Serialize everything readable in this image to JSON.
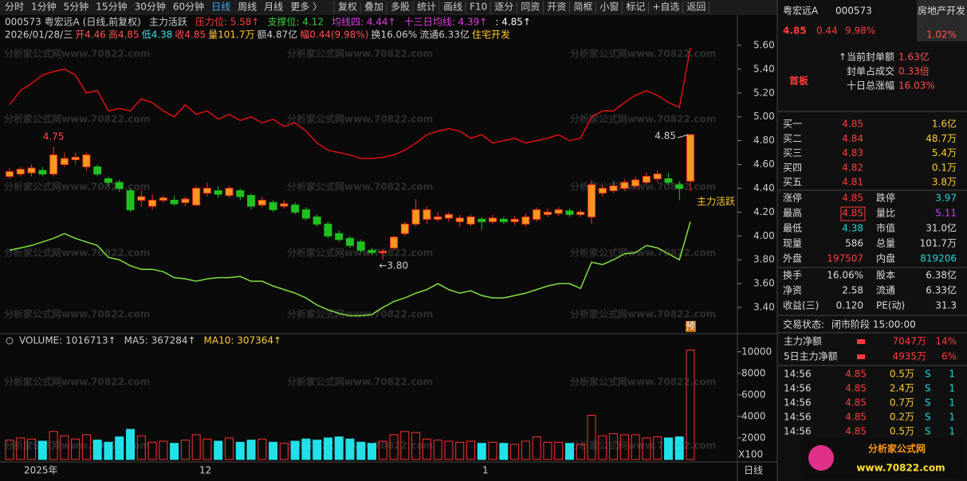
{
  "toolbar": [
    "分时",
    "1分钟",
    "5分钟",
    "15分钟",
    "30分钟",
    "60分钟",
    "日线",
    "周线",
    "月线",
    "更多 〉",
    "复权",
    "叠加",
    "多股",
    "统计",
    "画线",
    "F10",
    "逐分",
    "同资",
    "开资",
    "简框",
    "小窗",
    "标记",
    "+自选",
    "返回"
  ],
  "info_line1": [
    "000573 粤宏远A (日线,前复权)",
    "主力活跃",
    "压力位: 5.58↑",
    "支撑位: 4.12",
    "均线四: 4.44↑",
    "十三日均线: 4.39↑",
    ": 4.85↑"
  ],
  "info_line2": [
    "2026/01/28/三",
    "开4.46",
    "高4.85",
    "低4.38",
    "收4.85",
    "量101.7万",
    "额4.87亿",
    "幅0.44(9.98%)",
    "换16.06%",
    "流通6.33亿",
    "住宅开发"
  ],
  "watermark": "分析家公式网www.70822.com",
  "price_chart": {
    "ylim": [
      3.2,
      5.8
    ],
    "yticks": [
      {
        "value": 5.6,
        "label": "5.60"
      },
      {
        "value": 5.4,
        "label": "5.40"
      },
      {
        "value": 5.2,
        "label": "5.20"
      },
      {
        "value": 5.0,
        "label": "5.00"
      },
      {
        "value": 4.8,
        "label": "4.80"
      },
      {
        "value": 4.6,
        "label": "4.60"
      },
      {
        "value": 4.4,
        "label": "4.40"
      },
      {
        "value": 4.2,
        "label": "4.20"
      },
      {
        "value": 4.0,
        "label": "4.00"
      },
      {
        "value": 3.8,
        "label": "3.80"
      },
      {
        "value": 3.6,
        "label": "3.60"
      },
      {
        "value": 3.4,
        "label": "3.40"
      }
    ],
    "candles": [
      [
        4.5,
        4.54,
        4.57,
        4.48
      ],
      [
        4.52,
        4.56,
        4.58,
        4.5
      ],
      [
        4.53,
        4.57,
        4.6,
        4.5
      ],
      [
        4.55,
        4.52,
        4.58,
        4.5
      ],
      [
        4.52,
        4.68,
        4.75,
        4.5
      ],
      [
        4.6,
        4.65,
        4.7,
        4.58
      ],
      [
        4.64,
        4.66,
        4.7,
        4.6
      ],
      [
        4.58,
        4.68,
        4.7,
        4.55
      ],
      [
        4.58,
        4.52,
        4.6,
        4.5
      ],
      [
        4.48,
        4.45,
        4.5,
        4.42
      ],
      [
        4.45,
        4.4,
        4.47,
        4.37
      ],
      [
        4.38,
        4.22,
        4.4,
        4.2
      ],
      [
        4.3,
        4.33,
        4.38,
        4.25
      ],
      [
        4.25,
        4.3,
        4.35,
        4.22
      ],
      [
        4.3,
        4.32,
        4.34,
        4.28
      ],
      [
        4.3,
        4.27,
        4.34,
        4.25
      ],
      [
        4.28,
        4.31,
        4.33,
        4.25
      ],
      [
        4.26,
        4.4,
        4.42,
        4.25
      ],
      [
        4.36,
        4.4,
        4.45,
        4.33
      ],
      [
        4.38,
        4.35,
        4.42,
        4.32
      ],
      [
        4.34,
        4.4,
        4.42,
        4.32
      ],
      [
        4.38,
        4.33,
        4.4,
        4.3
      ],
      [
        4.34,
        4.25,
        4.36,
        4.22
      ],
      [
        4.26,
        4.3,
        4.33,
        4.24
      ],
      [
        4.28,
        4.22,
        4.3,
        4.2
      ],
      [
        4.25,
        4.27,
        4.3,
        4.23
      ],
      [
        4.26,
        4.2,
        4.28,
        4.18
      ],
      [
        4.22,
        4.15,
        4.24,
        4.13
      ],
      [
        4.16,
        4.1,
        4.18,
        4.08
      ],
      [
        4.1,
        4.0,
        4.12,
        3.98
      ],
      [
        4.02,
        3.97,
        4.05,
        3.95
      ],
      [
        3.98,
        3.92,
        4.0,
        3.9
      ],
      [
        3.95,
        3.88,
        3.97,
        3.86
      ],
      [
        3.88,
        3.86,
        3.9,
        3.84
      ],
      [
        3.86,
        3.87,
        3.89,
        3.8
      ],
      [
        3.9,
        3.99,
        4.0,
        3.88
      ],
      [
        4.02,
        4.1,
        4.12,
        4.0
      ],
      [
        4.1,
        4.22,
        4.31,
        4.08
      ],
      [
        4.14,
        4.22,
        4.25,
        4.1
      ],
      [
        4.14,
        4.16,
        4.2,
        4.12
      ],
      [
        4.15,
        4.18,
        4.2,
        4.12
      ],
      [
        4.12,
        4.15,
        4.18,
        4.08
      ],
      [
        4.1,
        4.16,
        4.18,
        4.08
      ],
      [
        4.14,
        4.12,
        4.16,
        4.05
      ],
      [
        4.12,
        4.15,
        4.18,
        4.1
      ],
      [
        4.14,
        4.12,
        4.16,
        4.1
      ],
      [
        4.12,
        4.14,
        4.17,
        4.09
      ],
      [
        4.1,
        4.16,
        4.19,
        4.08
      ],
      [
        4.14,
        4.22,
        4.24,
        4.12
      ],
      [
        4.18,
        4.2,
        4.23,
        4.16
      ],
      [
        4.19,
        4.22,
        4.24,
        4.17
      ],
      [
        4.21,
        4.18,
        4.23,
        4.16
      ],
      [
        4.18,
        4.2,
        4.22,
        4.16
      ],
      [
        4.16,
        4.43,
        4.47,
        4.1
      ],
      [
        4.36,
        4.4,
        4.43,
        4.33
      ],
      [
        4.38,
        4.42,
        4.46,
        4.36
      ],
      [
        4.4,
        4.45,
        4.48,
        4.38
      ],
      [
        4.42,
        4.47,
        4.5,
        4.4
      ],
      [
        4.45,
        4.5,
        4.53,
        4.43
      ],
      [
        4.48,
        4.52,
        4.55,
        4.45
      ],
      [
        4.48,
        4.45,
        4.53,
        4.43
      ],
      [
        4.43,
        4.4,
        4.46,
        4.3
      ],
      [
        4.46,
        4.85,
        4.85,
        4.38
      ]
    ],
    "upper": [
      5.1,
      5.22,
      5.28,
      5.35,
      5.38,
      5.4,
      5.35,
      5.2,
      5.22,
      5.05,
      5.07,
      5.05,
      5.15,
      5.12,
      5.05,
      5.0,
      5.1,
      5.02,
      5.05,
      4.98,
      5.02,
      4.97,
      5.0,
      4.95,
      4.98,
      4.92,
      4.95,
      4.88,
      4.78,
      4.72,
      4.7,
      4.68,
      4.65,
      4.65,
      4.66,
      4.68,
      4.72,
      4.78,
      4.85,
      4.88,
      4.9,
      4.88,
      4.82,
      4.85,
      4.78,
      4.8,
      4.82,
      4.78,
      4.8,
      4.82,
      4.85,
      4.8,
      4.82,
      5.0,
      5.05,
      5.05,
      5.12,
      5.18,
      5.22,
      5.18,
      5.12,
      5.08,
      5.58
    ],
    "lower": [
      3.88,
      3.9,
      3.92,
      3.95,
      3.98,
      4.02,
      3.98,
      3.95,
      3.92,
      3.82,
      3.8,
      3.75,
      3.72,
      3.72,
      3.7,
      3.65,
      3.64,
      3.62,
      3.64,
      3.65,
      3.65,
      3.66,
      3.62,
      3.62,
      3.58,
      3.55,
      3.52,
      3.48,
      3.42,
      3.38,
      3.35,
      3.33,
      3.33,
      3.34,
      3.4,
      3.45,
      3.48,
      3.52,
      3.55,
      3.6,
      3.55,
      3.52,
      3.54,
      3.5,
      3.48,
      3.48,
      3.5,
      3.52,
      3.55,
      3.58,
      3.6,
      3.6,
      3.56,
      3.78,
      3.76,
      3.8,
      3.85,
      3.86,
      3.92,
      3.9,
      3.85,
      3.8,
      4.12
    ],
    "annotations": [
      "4.75",
      "←3.80",
      "4.85",
      "主力活跃",
      "预"
    ]
  },
  "volume_chart": {
    "header": [
      "VOLUME: 1016713↑",
      "MA5: 367284↑",
      "MA10: 307364↑"
    ],
    "ylim": [
      0,
      10500
    ],
    "yticks": [
      2000,
      4000,
      6000,
      8000,
      10000
    ],
    "unit": "X100",
    "values": [
      1800,
      2000,
      1900,
      1700,
      2600,
      2200,
      1900,
      2300,
      1800,
      1600,
      2100,
      2800,
      2200,
      1600,
      1700,
      1500,
      1800,
      2300,
      1900,
      1700,
      2000,
      1600,
      1800,
      1900,
      1600,
      1500,
      1700,
      1900,
      1800,
      2000,
      2100,
      1900,
      1600,
      1500,
      1700,
      2300,
      2600,
      2500,
      1900,
      1800,
      1700,
      1600,
      1700,
      1500,
      1600,
      1500,
      1400,
      1700,
      2100,
      1600,
      1600,
      1500,
      1400,
      4100,
      2200,
      2400,
      2300,
      2300,
      2000,
      2100,
      2000,
      2100,
      10167
    ]
  },
  "x_axis": [
    "2025年",
    "12",
    "1",
    "日线"
  ],
  "side": {
    "name": "粤宏远A",
    "code": "000573",
    "sector": "房地产开发",
    "sector_change": "1.02%",
    "price": "4.85",
    "change": "0.44",
    "pct": "9.98%",
    "board": "首板",
    "seal": [
      [
        "↑当前封单额",
        "1.63亿"
      ],
      [
        "封单占成交",
        "0.33倍"
      ],
      [
        "十日总涨幅",
        "16.03%"
      ]
    ],
    "book": [
      [
        "买一",
        "4.85",
        "1.6亿"
      ],
      [
        "买二",
        "4.84",
        "48.7万"
      ],
      [
        "买三",
        "4.83",
        "5.4万"
      ],
      [
        "买四",
        "4.82",
        "0.1万"
      ],
      [
        "买五",
        "4.81",
        "3.8万"
      ]
    ],
    "stats": [
      [
        "涨停",
        "4.85",
        "跌停",
        "3.97"
      ],
      [
        "最高",
        "4.85",
        "量比",
        "5.11"
      ],
      [
        "最低",
        "4.38",
        "市值",
        "31.0亿"
      ],
      [
        "现量",
        "586",
        "总量",
        "101.7万"
      ],
      [
        "外盘",
        "197507",
        "内盘",
        "819206"
      ],
      [
        "换手",
        "16.06%",
        "股本",
        "6.38亿"
      ],
      [
        "净资",
        "2.58",
        "流通",
        "6.33亿"
      ],
      [
        "收益(三)",
        "0.120",
        "PE(动)",
        "31.3"
      ]
    ],
    "status": [
      "交易状态:",
      "闭市阶段 15:00:00"
    ],
    "flows": [
      [
        "主力净额",
        "7047万",
        "14%"
      ],
      [
        "5日主力净额",
        "4935万",
        "6%"
      ]
    ],
    "trades": [
      [
        "14:56",
        "4.85",
        "0.5万",
        "S",
        "1"
      ],
      [
        "14:56",
        "4.85",
        "2.4万",
        "S",
        "1"
      ],
      [
        "14:56",
        "4.85",
        "0.7万",
        "S",
        "1"
      ],
      [
        "14:56",
        "4.85",
        "0.2万",
        "S",
        "1"
      ],
      [
        "14:56",
        "4.85",
        "0.5万",
        "S",
        "1"
      ]
    ],
    "logo": [
      "分析家公式网",
      "www.70822.com"
    ]
  }
}
